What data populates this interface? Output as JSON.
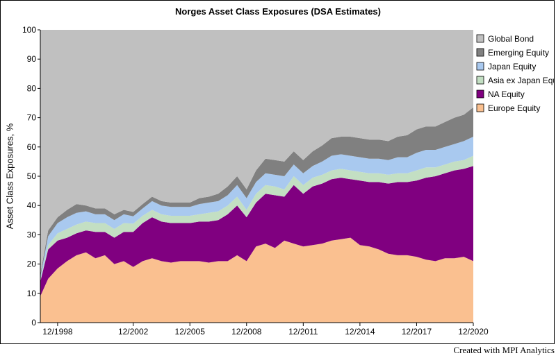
{
  "title": "Norges Asset Class Exposures (DSA Estimates)",
  "credit": "Created with MPI Analytics",
  "chart_data": {
    "type": "area",
    "stacked": true,
    "title": "Norges Asset Class Exposures (DSA Estimates)",
    "xlabel": "",
    "ylabel": "Asset Class Exposures, %",
    "ylim": [
      0,
      100
    ],
    "yticks": [
      0,
      10,
      20,
      30,
      40,
      50,
      60,
      70,
      80,
      90,
      100
    ],
    "xlim": [
      "1998-01",
      "2020-12"
    ],
    "x_tick_labels": [
      "12/1998",
      "12/2002",
      "12/2005",
      "12/2008",
      "12/2011",
      "12/2014",
      "12/2017",
      "12/2020"
    ],
    "x_tick_dates": [
      "1998-12",
      "2002-12",
      "2005-12",
      "2008-12",
      "2011-12",
      "2014-12",
      "2017-12",
      "2020-12"
    ],
    "legend_position": "right",
    "x": [
      "1998-01",
      "1998-06",
      "1998-12",
      "1999-06",
      "1999-12",
      "2000-06",
      "2000-12",
      "2001-06",
      "2001-12",
      "2002-06",
      "2002-12",
      "2003-06",
      "2003-12",
      "2004-06",
      "2004-12",
      "2005-06",
      "2005-12",
      "2006-06",
      "2006-12",
      "2007-06",
      "2007-12",
      "2008-06",
      "2008-12",
      "2009-06",
      "2009-12",
      "2010-06",
      "2010-12",
      "2011-06",
      "2011-12",
      "2012-06",
      "2012-12",
      "2013-06",
      "2013-12",
      "2014-06",
      "2014-12",
      "2015-06",
      "2015-12",
      "2016-06",
      "2016-12",
      "2017-06",
      "2017-12",
      "2018-06",
      "2018-12",
      "2019-06",
      "2019-12",
      "2020-06",
      "2020-12"
    ],
    "series": [
      {
        "name": "Europe Equity",
        "color": "#fac090",
        "values": [
          9,
          15,
          18.5,
          21,
          23,
          24,
          22,
          23,
          20,
          21,
          19,
          21,
          22,
          21,
          20.5,
          21,
          21,
          21,
          20.5,
          21,
          21,
          23,
          21,
          26,
          27,
          25.5,
          28,
          27,
          26,
          26.5,
          27,
          28,
          28.5,
          29,
          26.5,
          26,
          25,
          23.5,
          23,
          23,
          22.5,
          21.5,
          21,
          22,
          22,
          22.5,
          21
        ]
      },
      {
        "name": "NA Equity",
        "color": "#800080",
        "values": [
          5,
          10,
          9.5,
          8,
          7.5,
          7.5,
          9,
          8,
          9,
          10,
          12,
          13,
          14,
          13.5,
          13.5,
          13,
          13,
          13.5,
          14,
          14,
          16,
          17,
          15,
          15,
          17,
          18,
          15,
          20,
          18,
          20,
          20.5,
          21,
          21,
          20,
          22,
          22,
          23,
          24,
          25,
          25,
          26,
          28,
          29,
          29,
          30,
          30,
          32.5
        ]
      },
      {
        "name": "Asia ex Japan Equity",
        "color": "#c3dfc3",
        "values": [
          0.5,
          1.5,
          2.5,
          3,
          3,
          3,
          3,
          3,
          3,
          3,
          2.8,
          2.5,
          2.5,
          2.5,
          2.5,
          2.5,
          2.5,
          2.5,
          3,
          3,
          3,
          3,
          2.5,
          3,
          3,
          3,
          2.5,
          3,
          3,
          3,
          3,
          3,
          3,
          3,
          3,
          3,
          3,
          3,
          3,
          3,
          3.5,
          3.5,
          3,
          3,
          3,
          3,
          3.5
        ]
      },
      {
        "name": "Japan Equity",
        "color": "#a9c9ef",
        "values": [
          1,
          3,
          3.5,
          4,
          4,
          3.5,
          3,
          3,
          3,
          3,
          2.5,
          2.5,
          3,
          3,
          3,
          3,
          3,
          3.5,
          3.5,
          3.5,
          3.5,
          4,
          4,
          4,
          4,
          4,
          4.5,
          4,
          4,
          4,
          4.5,
          5,
          5,
          5,
          5,
          5,
          5,
          5,
          5.5,
          5.5,
          6,
          6,
          6,
          6,
          6,
          6.5,
          6.5
        ]
      },
      {
        "name": "Emerging Equity",
        "color": "#808080",
        "values": [
          1,
          2,
          2,
          2.5,
          3,
          2,
          2,
          2,
          2,
          1.5,
          1.5,
          1.5,
          1.5,
          1.5,
          1.5,
          1.5,
          1.5,
          2,
          2,
          2.5,
          3,
          3,
          3,
          4,
          5,
          5,
          5,
          4.5,
          4.5,
          5,
          5.5,
          6,
          6,
          6.5,
          6.5,
          6.5,
          6.5,
          6.5,
          7,
          7.5,
          8,
          8,
          8,
          8.5,
          9,
          9,
          10
        ]
      },
      {
        "name": "Global Bond",
        "color": "#c0c0c0",
        "values": [
          83.5,
          68.5,
          64,
          61.5,
          59.5,
          60,
          61,
          61,
          63,
          61.5,
          62.2,
          59.5,
          57,
          58.5,
          59,
          59,
          59,
          57.5,
          57,
          56,
          53.5,
          50,
          54.5,
          48,
          44,
          44.5,
          45,
          41.5,
          44.5,
          41.5,
          39.5,
          37,
          36.5,
          36.5,
          37,
          37.5,
          37.5,
          38,
          36.5,
          36,
          34,
          33,
          33,
          31.5,
          30,
          29,
          26.5
        ]
      }
    ]
  }
}
